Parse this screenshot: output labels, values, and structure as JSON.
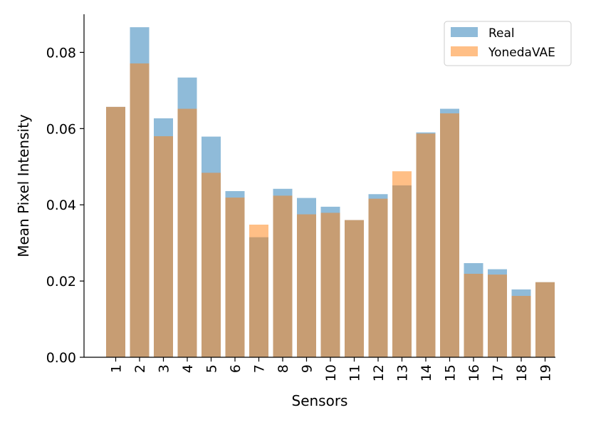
{
  "chart_data": {
    "type": "bar",
    "title": "",
    "xlabel": "Sensors",
    "ylabel": "Mean Pixel Intensity",
    "categories": [
      "1",
      "2",
      "3",
      "4",
      "5",
      "6",
      "7",
      "8",
      "9",
      "10",
      "11",
      "12",
      "13",
      "14",
      "15",
      "16",
      "17",
      "18",
      "19"
    ],
    "series": [
      {
        "name": "Real",
        "color": "#1f77b4",
        "opacity": 0.5,
        "values": [
          0.0657,
          0.0866,
          0.0627,
          0.0734,
          0.0579,
          0.0436,
          0.0315,
          0.0442,
          0.0418,
          0.0395,
          0.036,
          0.0428,
          0.0451,
          0.059,
          0.0652,
          0.0247,
          0.0231,
          0.0178,
          0.0197
        ]
      },
      {
        "name": "YonedaVAE",
        "color": "#ff7f0e",
        "opacity": 0.5,
        "values": [
          0.0657,
          0.0771,
          0.058,
          0.0652,
          0.0484,
          0.0419,
          0.0348,
          0.0424,
          0.0375,
          0.0379,
          0.036,
          0.0416,
          0.0488,
          0.0587,
          0.064,
          0.0219,
          0.0217,
          0.0161,
          0.0197
        ]
      }
    ],
    "ylim": [
      0,
      0.09
    ],
    "yticks": [
      0.0,
      0.02,
      0.04,
      0.06,
      0.08
    ],
    "ytick_labels": [
      "0.00",
      "0.02",
      "0.04",
      "0.06",
      "0.08"
    ],
    "xtick_rotation": "vertical",
    "grid": false,
    "legend_position": "top-right"
  }
}
